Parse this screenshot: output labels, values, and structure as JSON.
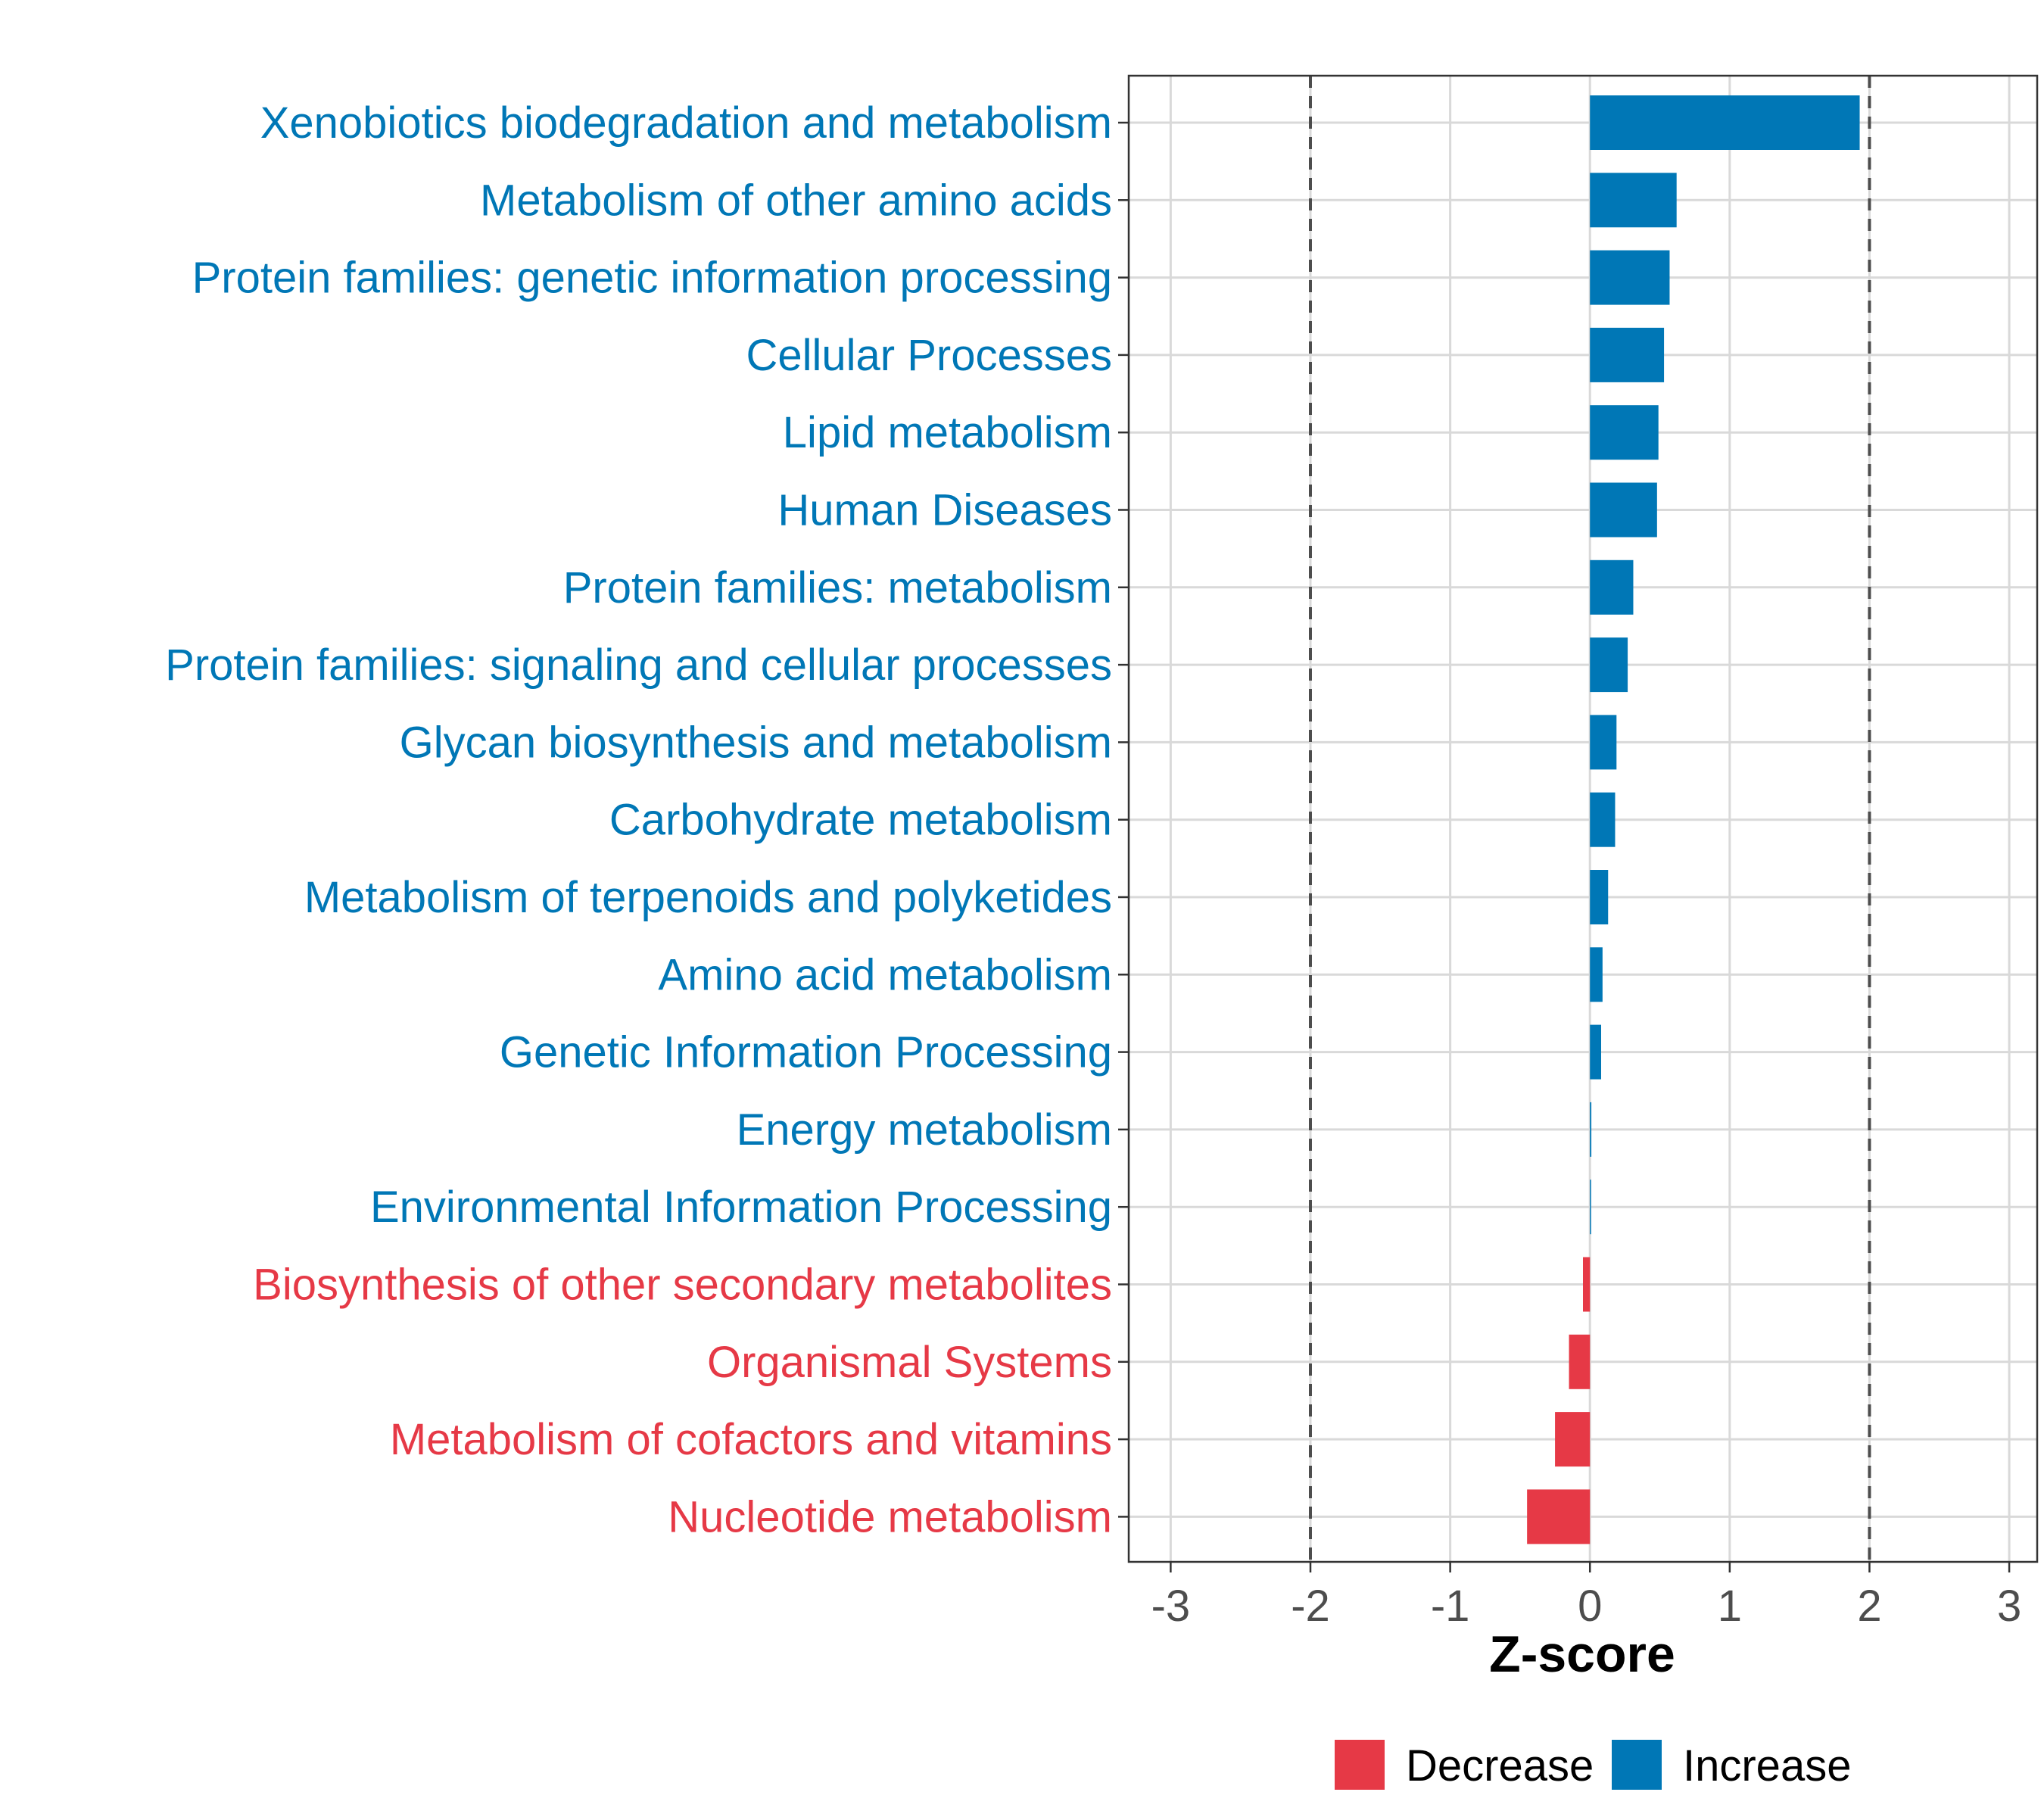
{
  "colors": {
    "decrease": "#E63946",
    "increase": "#0077B6",
    "grid": "#D9D9D9",
    "threshold": "#4D4D4D",
    "panel_border": "#333333"
  },
  "chart_data": {
    "type": "bar",
    "orientation": "horizontal",
    "title": "",
    "xlabel": "Z-score",
    "ylabel": "",
    "xlim": [
      -3.3,
      3.2
    ],
    "xticks": [
      -3,
      -2,
      -1,
      0,
      1,
      2,
      3
    ],
    "grid": true,
    "threshold_lines": [
      -2,
      2
    ],
    "legend": {
      "position": "bottom",
      "entries": [
        {
          "label": "Decrease",
          "color": "#E63946"
        },
        {
          "label": "Increase",
          "color": "#0077B6"
        }
      ]
    },
    "categories": [
      "Xenobiotics biodegradation and metabolism",
      "Metabolism of other amino acids",
      "Protein families: genetic information processing",
      "Cellular Processes",
      "Lipid metabolism",
      "Human Diseases",
      "Protein families: metabolism",
      "Protein families: signaling and cellular processes",
      "Glycan biosynthesis and metabolism",
      "Carbohydrate metabolism",
      "Metabolism of terpenoids and polyketides",
      "Amino acid metabolism",
      "Genetic Information Processing",
      "Energy metabolism",
      "Environmental Information Processing",
      "Biosynthesis of other secondary metabolites",
      "Organismal Systems",
      "Metabolism of cofactors and vitamins",
      "Nucleotide metabolism"
    ],
    "values": [
      1.93,
      0.62,
      0.57,
      0.53,
      0.49,
      0.48,
      0.31,
      0.27,
      0.19,
      0.18,
      0.13,
      0.09,
      0.08,
      0.01,
      0.005,
      -0.05,
      -0.15,
      -0.25,
      -0.45
    ],
    "groups": [
      "Increase",
      "Increase",
      "Increase",
      "Increase",
      "Increase",
      "Increase",
      "Increase",
      "Increase",
      "Increase",
      "Increase",
      "Increase",
      "Increase",
      "Increase",
      "Increase",
      "Increase",
      "Decrease",
      "Decrease",
      "Decrease",
      "Decrease"
    ]
  }
}
